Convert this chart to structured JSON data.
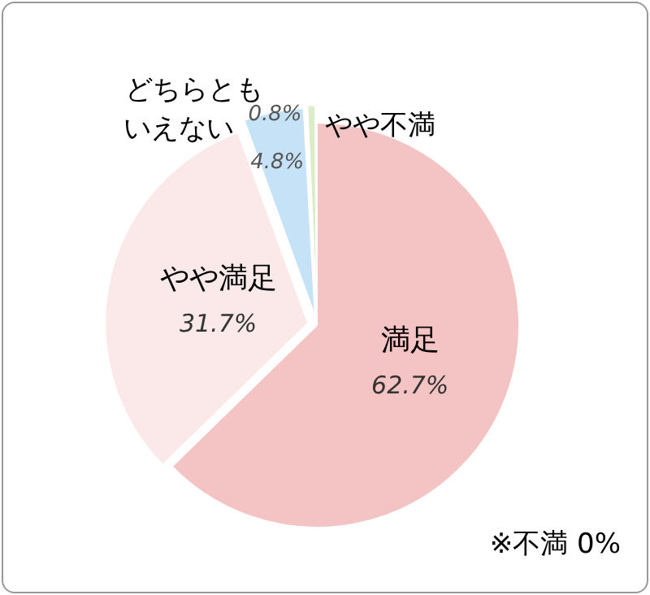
{
  "chart_data": {
    "type": "pie",
    "categories": [
      "満足",
      "やや満足",
      "どちらともいえない",
      "やや不満"
    ],
    "values": [
      62.7,
      31.7,
      4.8,
      0.8
    ],
    "colors": [
      "#f4c4c4",
      "#fbe8e8",
      "#c6e2f7",
      "#dcebc8"
    ],
    "value_labels": [
      "62.7%",
      "31.7%",
      "4.8%",
      "0.8%"
    ],
    "annotations": [
      "※不満 0%"
    ],
    "legend": false
  }
}
